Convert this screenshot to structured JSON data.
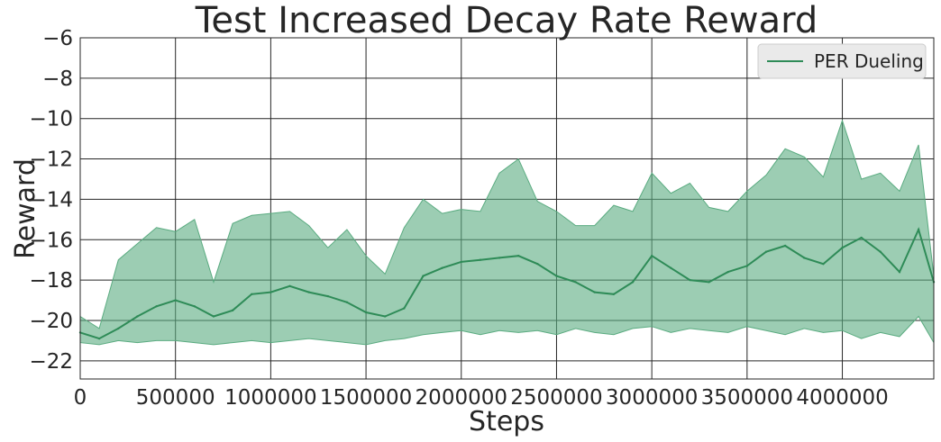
{
  "chart_data": {
    "type": "line",
    "title": "Test Increased Decay Rate Reward",
    "xlabel": "Steps",
    "ylabel": "Reward",
    "xlim": [
      0,
      4480000
    ],
    "ylim": [
      -22.9,
      -6
    ],
    "x_ticks": [
      0,
      500000,
      1000000,
      1500000,
      2000000,
      2500000,
      3000000,
      3500000,
      4000000
    ],
    "x_tick_labels": [
      "0",
      "500000",
      "1000000",
      "1500000",
      "2000000",
      "2500000",
      "3000000",
      "3500000",
      "4000000"
    ],
    "y_ticks": [
      -22,
      -20,
      -18,
      -16,
      -14,
      -12,
      -10,
      -8,
      -6
    ],
    "y_tick_labels": [
      "−22",
      "−20",
      "−18",
      "−16",
      "−14",
      "−12",
      "−10",
      "−8",
      "−6"
    ],
    "grid": true,
    "legend_position": "top-right",
    "colors": {
      "line": "#2e8b57",
      "band": "#5aab80",
      "grid": "#262626",
      "legend_bg": "#eaeaea"
    },
    "series": [
      {
        "name": "PER Dueling",
        "x": [
          0,
          100000,
          200000,
          300000,
          400000,
          500000,
          600000,
          700000,
          800000,
          900000,
          1000000,
          1100000,
          1200000,
          1300000,
          1400000,
          1500000,
          1600000,
          1700000,
          1800000,
          1900000,
          2000000,
          2100000,
          2200000,
          2300000,
          2400000,
          2500000,
          2600000,
          2700000,
          2800000,
          2900000,
          3000000,
          3100000,
          3200000,
          3300000,
          3400000,
          3500000,
          3600000,
          3700000,
          3800000,
          3900000,
          4000000,
          4100000,
          4200000,
          4300000,
          4400000,
          4480000
        ],
        "mean": [
          -20.6,
          -20.9,
          -20.4,
          -19.8,
          -19.3,
          -19.0,
          -19.3,
          -19.8,
          -19.5,
          -18.7,
          -18.6,
          -18.3,
          -18.6,
          -18.8,
          -19.1,
          -19.6,
          -19.8,
          -19.4,
          -17.8,
          -17.4,
          -17.1,
          -17.0,
          -16.9,
          -16.8,
          -17.2,
          -17.8,
          -18.1,
          -18.6,
          -18.7,
          -18.1,
          -16.8,
          -17.4,
          -18.0,
          -18.1,
          -17.6,
          -17.3,
          -16.6,
          -16.3,
          -16.9,
          -17.2,
          -16.4,
          -15.9,
          -16.6,
          -17.6,
          -15.5,
          -18.1
        ],
        "upper": [
          -19.8,
          -20.4,
          -17.0,
          -16.2,
          -15.4,
          -15.6,
          -15.0,
          -18.1,
          -15.2,
          -14.8,
          -14.7,
          -14.6,
          -15.3,
          -16.4,
          -15.5,
          -16.8,
          -17.7,
          -15.4,
          -14.0,
          -14.7,
          -14.5,
          -14.6,
          -12.7,
          -12.0,
          -14.1,
          -14.6,
          -15.3,
          -15.3,
          -14.3,
          -14.6,
          -12.7,
          -13.7,
          -13.2,
          -14.4,
          -14.6,
          -13.6,
          -12.8,
          -11.5,
          -11.9,
          -12.9,
          -10.1,
          -13.0,
          -12.7,
          -13.6,
          -11.3,
          -17.8
        ],
        "lower": [
          -21.1,
          -21.2,
          -21.0,
          -21.1,
          -21.0,
          -21.0,
          -21.1,
          -21.2,
          -21.1,
          -21.0,
          -21.1,
          -21.0,
          -20.9,
          -21.0,
          -21.1,
          -21.2,
          -21.0,
          -20.9,
          -20.7,
          -20.6,
          -20.5,
          -20.7,
          -20.5,
          -20.6,
          -20.5,
          -20.7,
          -20.4,
          -20.6,
          -20.7,
          -20.4,
          -20.3,
          -20.6,
          -20.4,
          -20.5,
          -20.6,
          -20.3,
          -20.5,
          -20.7,
          -20.4,
          -20.6,
          -20.5,
          -20.9,
          -20.6,
          -20.8,
          -19.8,
          -21.1
        ]
      }
    ]
  }
}
